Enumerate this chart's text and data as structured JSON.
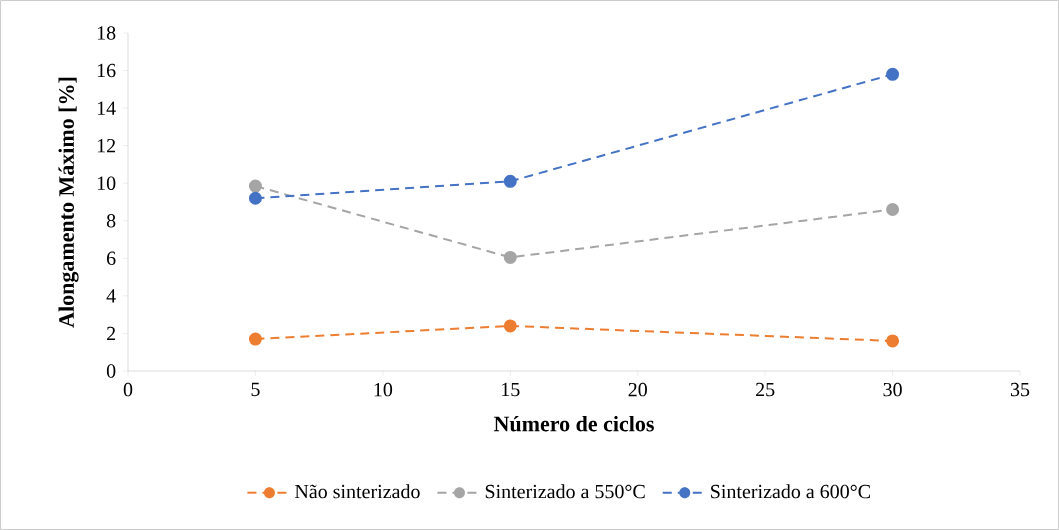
{
  "chart_data": {
    "type": "line",
    "xlabel": "Número de ciclos",
    "ylabel": "Alongamento Máximo [%]",
    "x": [
      5,
      15,
      30
    ],
    "series": [
      {
        "name": "Não sinterizado",
        "color": "#ed7d31",
        "values": [
          1.7,
          2.4,
          1.6
        ]
      },
      {
        "name": "Sinterizado a 550°C",
        "color": "#a5a5a5",
        "values": [
          9.85,
          6.05,
          8.6
        ]
      },
      {
        "name": "Sinterizado a 600°C",
        "color": "#4472c4",
        "values": [
          9.2,
          10.1,
          15.8
        ]
      }
    ],
    "xlim": [
      0,
      35
    ],
    "xticks": [
      0,
      5,
      10,
      15,
      20,
      25,
      30,
      35
    ],
    "ylim": [
      0,
      18
    ],
    "yticks": [
      0,
      2,
      4,
      6,
      8,
      10,
      12,
      14,
      16,
      18
    ],
    "grid": false,
    "legend": "bottom",
    "marker": "circle",
    "line_style": "dashed"
  }
}
